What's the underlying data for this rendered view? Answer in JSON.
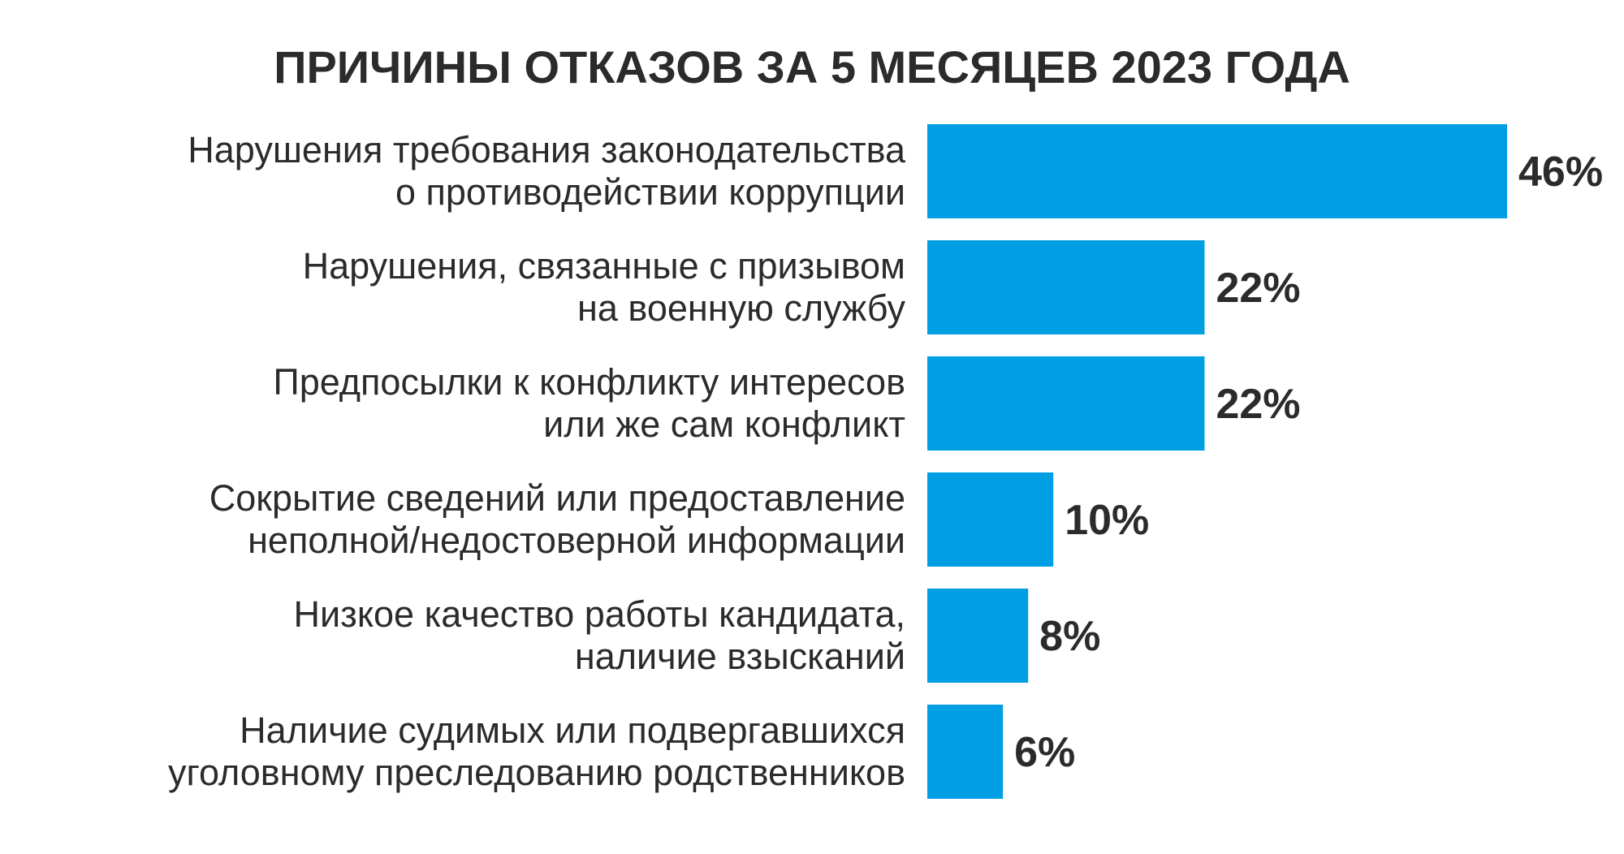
{
  "chart_data": {
    "type": "bar",
    "orientation": "horizontal",
    "title": "ПРИЧИНЫ ОТКАЗОВ ЗА 5 МЕСЯЦЕВ 2023 ГОДА",
    "categories": [
      [
        "Нарушения требования законодательства",
        "о противодействии коррупции"
      ],
      [
        "Нарушения, связанные с призывом",
        "на военную службу"
      ],
      [
        "Предпосылки к конфликту интересов",
        "или же сам конфликт"
      ],
      [
        "Сокрытие сведений или предоставление",
        "неполной/недостоверной информации"
      ],
      [
        "Низкое качество работы кандидата,",
        "наличие взысканий"
      ],
      [
        "Наличие судимых или подвергавшихся",
        "уголовному преследованию родственников"
      ]
    ],
    "values": [
      46,
      22,
      22,
      10,
      8,
      6
    ],
    "value_labels": [
      "46%",
      "22%",
      "22%",
      "10%",
      "8%",
      "6%"
    ],
    "unit": "%",
    "xlim": [
      0,
      46
    ],
    "grid": false,
    "legend": "none",
    "bar_color": "#009ee3"
  }
}
